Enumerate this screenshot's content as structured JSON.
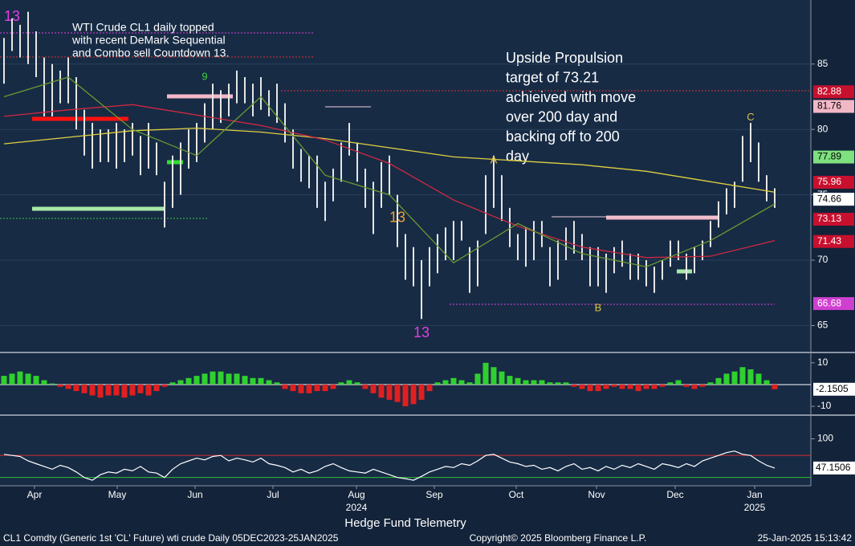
{
  "chart_data": [
    {
      "type": "ohlc",
      "notes": [
        {
          "lines": [
            "WTI Crude CL1 daily topped",
            "with recent DeMark Sequential",
            "and Combo sell Countdown 13."
          ]
        },
        {
          "lines": [
            "Upside Propulsion",
            "target of 73.21",
            "achieived with move",
            "over 200 day and",
            "backing off to 200",
            "day"
          ]
        }
      ],
      "xlim": [
        -0.5,
        100.5
      ],
      "ylim": [
        63.0,
        89.9
      ],
      "yticks": [
        65,
        70,
        75,
        80,
        85
      ],
      "grid": true,
      "color": "#e6e6e6",
      "high": [
        87,
        88.5,
        88,
        89,
        87.5,
        85.5,
        85,
        84.5,
        85.5,
        84,
        81.5,
        80.5,
        80,
        80,
        80.5,
        80,
        80.5,
        79.5,
        80.5,
        79,
        76,
        78,
        79,
        80,
        80.5,
        82,
        83.5,
        83,
        83.5,
        84.5,
        84,
        83.5,
        84,
        83,
        83.5,
        82,
        80,
        78.5,
        78,
        78,
        76,
        77,
        79,
        80.5,
        79,
        77,
        76,
        77.5,
        78,
        75,
        72,
        71,
        70,
        71,
        72,
        72.5,
        73,
        73,
        71,
        71.5,
        76.5,
        78,
        76.5,
        74,
        72,
        72.5,
        73,
        73,
        71,
        71.5,
        72.5,
        73,
        72,
        71,
        71,
        70.5,
        71,
        71.5,
        70.5,
        70.5,
        70,
        69.5,
        70,
        71.5,
        71.5,
        70.5,
        71,
        71.5,
        73,
        74.5,
        75.5,
        76,
        79.5,
        80.5,
        79,
        76.5,
        75.5
      ],
      "low": [
        83.5,
        86,
        85.5,
        85,
        84,
        81,
        81,
        82,
        82,
        80,
        78,
        77,
        77.5,
        77.5,
        77,
        77.5,
        78,
        76.5,
        77,
        76.5,
        72.5,
        74,
        75,
        77,
        77.5,
        79,
        80,
        80.5,
        81,
        82,
        82,
        81,
        81.5,
        81,
        80.5,
        79,
        77,
        76,
        75.5,
        74,
        73,
        74.5,
        76,
        78,
        76,
        74,
        72,
        74,
        75,
        71,
        68.5,
        68,
        65.5,
        68,
        69,
        70,
        70,
        71.5,
        67.5,
        68,
        72,
        74,
        73,
        71,
        70,
        69.5,
        70,
        71,
        68,
        68.5,
        70,
        70.5,
        70,
        68,
        68,
        67.5,
        69,
        69.5,
        68.5,
        68.5,
        68,
        67.5,
        68.5,
        69.5,
        70,
        68.5,
        69,
        70,
        71,
        72.5,
        73.5,
        74,
        76,
        77.5,
        76,
        74.5,
        74
      ],
      "series": [
        {
          "color": "#e0d040",
          "x": [
            0,
            8,
            16,
            24,
            32,
            40,
            48,
            56,
            64,
            72,
            80,
            88,
            96
          ],
          "values": [
            78.9,
            79.4,
            79.9,
            80.1,
            79.8,
            79.3,
            78.6,
            77.9,
            77.6,
            77.3,
            76.8,
            76.0,
            75.2
          ]
        },
        {
          "color": "#d02840",
          "x": [
            0,
            8,
            16,
            24,
            32,
            40,
            48,
            56,
            64,
            72,
            80,
            88,
            96
          ],
          "values": [
            81.0,
            81.5,
            81.9,
            81.1,
            80.3,
            79.2,
            77.4,
            74.6,
            72.6,
            71.0,
            70.2,
            70.3,
            71.5
          ]
        },
        {
          "color": "#6a9a30",
          "x": [
            0,
            8,
            16,
            24,
            32,
            40,
            48,
            56,
            64,
            72,
            80,
            88,
            96
          ],
          "values": [
            82.5,
            84.0,
            80.0,
            78.0,
            82.5,
            76.5,
            75.0,
            69.8,
            72.8,
            70.5,
            69.5,
            71.5,
            74.3
          ]
        }
      ],
      "annotations": [
        {
          "text": "13",
          "x": 1,
          "y": 88.6,
          "color": "#e040e0"
        },
        {
          "text": "9",
          "x": 25,
          "y": 84.0,
          "color": "#40d040"
        },
        {
          "text": "13",
          "x": 49,
          "y": 73.2,
          "color": "#f0a030"
        },
        {
          "text": "13",
          "x": 52,
          "y": 64.4,
          "color": "#e040e0"
        },
        {
          "text": "A",
          "x": 61,
          "y": 77.6,
          "color": "#e0c040"
        },
        {
          "text": "B",
          "x": 74,
          "y": 66.3,
          "color": "#e0c040"
        },
        {
          "text": "C",
          "x": 93,
          "y": 80.9,
          "color": "#e0c040"
        }
      ],
      "levels": [
        {
          "value": 82.88,
          "color": "#c8102e"
        },
        {
          "value": 81.76,
          "color": "#f2b8c6"
        },
        {
          "value": 77.89,
          "color": "#7ee07e"
        },
        {
          "value": 75.96,
          "color": "#c8102e"
        },
        {
          "value": 74.66,
          "color": "#ffffff"
        },
        {
          "value": 73.13,
          "color": "#c8102e"
        },
        {
          "value": 71.43,
          "color": "#c8102e"
        },
        {
          "value": 66.68,
          "color": "#d040d0"
        }
      ]
    },
    {
      "type": "bar",
      "xlim": [
        -0.5,
        100.5
      ],
      "ylim": [
        -13.3,
        14
      ],
      "yticks": [
        10,
        -10
      ],
      "colors": {
        "up": "#30d030",
        "down": "#e02020"
      },
      "last_label": -2.1505,
      "values": [
        4,
        5,
        6,
        5,
        4,
        2,
        0.5,
        -1,
        -2,
        -3,
        -4,
        -5,
        -6,
        -5,
        -5,
        -6,
        -5,
        -4,
        -5,
        -3,
        -1,
        1,
        2,
        3,
        4,
        5,
        6,
        6,
        5,
        5,
        4,
        3,
        3,
        2,
        1,
        -2,
        -3,
        -4,
        -4,
        -3,
        -3,
        -2,
        1,
        2,
        1,
        -2,
        -4,
        -6,
        -7,
        -8,
        -10,
        -9,
        -7,
        -3,
        1,
        2,
        3,
        2,
        1,
        5,
        10,
        8,
        6,
        4,
        3,
        2,
        2,
        2,
        1,
        1,
        1,
        -1,
        -2,
        -3,
        -3,
        -2,
        -1,
        -2,
        -2,
        -3,
        -2,
        -2,
        -1,
        1,
        2,
        -1,
        -2,
        -1,
        1,
        3,
        5,
        6,
        8,
        7,
        5,
        2,
        -2.1505
      ]
    },
    {
      "type": "line",
      "xlim": [
        -0.5,
        100.5
      ],
      "ylim": [
        15,
        140
      ],
      "yticks": [
        100
      ],
      "color": "#ffffff",
      "last_label": 47.1506,
      "bands": [
        {
          "value": 70,
          "color": "#d03030"
        },
        {
          "value": 30,
          "color": "#30c030"
        }
      ],
      "values": [
        72,
        70,
        68,
        60,
        55,
        50,
        45,
        52,
        48,
        40,
        30,
        25,
        35,
        40,
        38,
        45,
        42,
        50,
        40,
        38,
        30,
        45,
        55,
        60,
        65,
        62,
        68,
        70,
        60,
        65,
        62,
        58,
        65,
        55,
        52,
        48,
        40,
        45,
        38,
        42,
        50,
        55,
        48,
        42,
        40,
        38,
        45,
        40,
        35,
        30,
        28,
        25,
        32,
        40,
        45,
        50,
        48,
        55,
        52,
        60,
        70,
        72,
        65,
        58,
        55,
        50,
        52,
        45,
        48,
        42,
        50,
        55,
        45,
        48,
        42,
        50,
        45,
        52,
        48,
        55,
        50,
        45,
        55,
        52,
        48,
        55,
        50,
        60,
        65,
        70,
        75,
        78,
        72,
        70,
        60,
        52,
        47.1506
      ],
      "xticks": [
        {
          "value": 3.8,
          "label": "Apr"
        },
        {
          "value": 14.1,
          "label": "May"
        },
        {
          "value": 23.8,
          "label": "Jun"
        },
        {
          "value": 33.5,
          "label": "Jul"
        },
        {
          "value": 43.9,
          "label": "Aug"
        },
        {
          "value": 53.6,
          "label": "Sep"
        },
        {
          "value": 63.8,
          "label": "Oct"
        },
        {
          "value": 73.8,
          "label": "Nov"
        },
        {
          "value": 83.6,
          "label": "Dec"
        },
        {
          "value": 93.5,
          "label": "Jan"
        }
      ],
      "year_labels": [
        {
          "value": 43.9,
          "label": "2024"
        },
        {
          "value": 93.5,
          "label": "2025"
        }
      ]
    }
  ],
  "footer": {
    "left": "CL1 Comdty (Generic 1st 'CL' Future) wti crude  Daily 05DEC2023-25JAN2025",
    "center": "Hedge Fund Telemetry",
    "copyright": "Copyright© 2025 Bloomberg Finance L.P.",
    "timestamp": "25-Jan-2025 15:13:42"
  }
}
